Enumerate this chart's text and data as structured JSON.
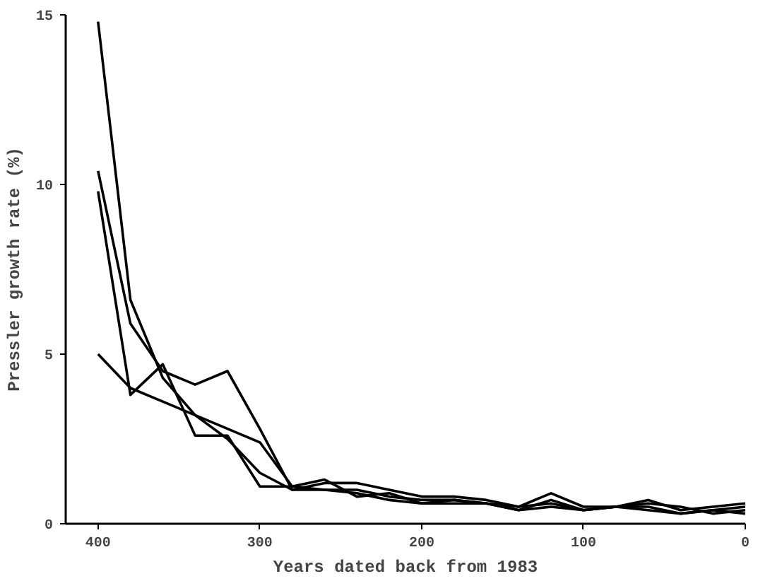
{
  "chart_data": {
    "type": "line",
    "xlabel": "Years dated back from 1983",
    "ylabel": "Pressler growth rate (%)",
    "x": [
      400,
      380,
      360,
      340,
      320,
      300,
      280,
      260,
      240,
      220,
      200,
      180,
      160,
      140,
      120,
      100,
      80,
      60,
      40,
      20,
      0
    ],
    "xlim": [
      420,
      0
    ],
    "xticks": [
      400,
      300,
      200,
      100,
      0
    ],
    "ylim": [
      0,
      15
    ],
    "yticks": [
      0,
      5,
      10,
      15
    ],
    "grid": false,
    "marker": "none",
    "line_style": "solid",
    "series": [
      {
        "color": "#000000",
        "values": [
          14.8,
          6.6,
          4.3,
          3.2,
          2.5,
          1.5,
          1.0,
          1.0,
          1.0,
          0.8,
          0.7,
          0.7,
          0.6,
          0.5,
          0.6,
          0.4,
          0.5,
          0.5,
          0.3,
          0.4,
          0.3
        ]
      },
      {
        "color": "#000000",
        "values": [
          10.4,
          5.9,
          4.5,
          4.1,
          4.5,
          2.8,
          1.0,
          1.2,
          1.2,
          1.0,
          0.8,
          0.8,
          0.7,
          0.5,
          0.9,
          0.5,
          0.5,
          0.7,
          0.4,
          0.5,
          0.6
        ]
      },
      {
        "color": "#000000",
        "values": [
          9.8,
          3.8,
          4.7,
          2.6,
          2.6,
          1.1,
          1.1,
          1.3,
          0.8,
          0.9,
          0.6,
          0.7,
          0.6,
          0.4,
          0.7,
          0.4,
          0.5,
          0.6,
          0.5,
          0.3,
          0.4
        ]
      },
      {
        "color": "#000000",
        "values": [
          5.0,
          4.0,
          3.6,
          3.2,
          2.8,
          2.4,
          1.1,
          1.0,
          0.9,
          0.7,
          0.6,
          0.6,
          0.6,
          0.4,
          0.5,
          0.4,
          0.5,
          0.4,
          0.3,
          0.4,
          0.5
        ]
      }
    ]
  }
}
